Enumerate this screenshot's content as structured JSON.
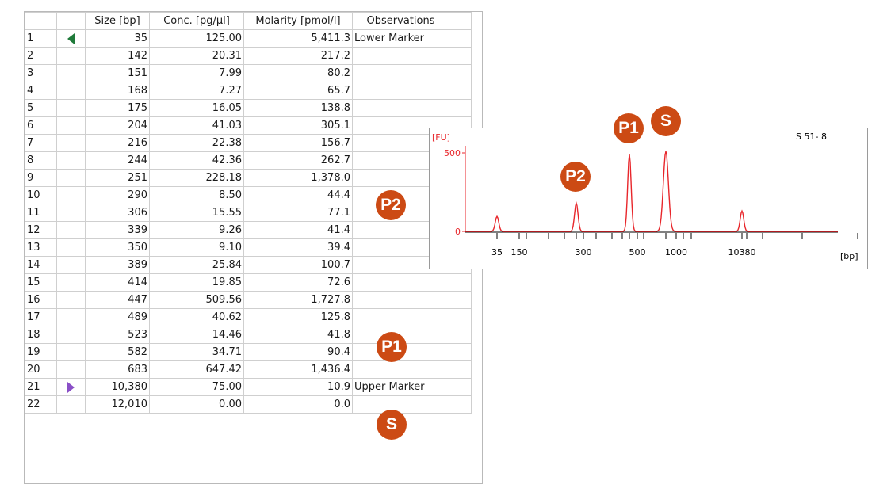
{
  "table": {
    "headers": [
      "",
      "",
      "Size [bp]",
      "Conc. [pg/µl]",
      "Molarity [pmol/l]",
      "Observations",
      ""
    ],
    "rows": [
      {
        "n": "1",
        "size": "35",
        "conc": "125.00",
        "mol": "5,411.3",
        "obs": "Lower Marker",
        "marker": "lower"
      },
      {
        "n": "2",
        "size": "142",
        "conc": "20.31",
        "mol": "217.2",
        "obs": "",
        "marker": ""
      },
      {
        "n": "3",
        "size": "151",
        "conc": "7.99",
        "mol": "80.2",
        "obs": "",
        "marker": ""
      },
      {
        "n": "4",
        "size": "168",
        "conc": "7.27",
        "mol": "65.7",
        "obs": "",
        "marker": ""
      },
      {
        "n": "5",
        "size": "175",
        "conc": "16.05",
        "mol": "138.8",
        "obs": "",
        "marker": ""
      },
      {
        "n": "6",
        "size": "204",
        "conc": "41.03",
        "mol": "305.1",
        "obs": "",
        "marker": ""
      },
      {
        "n": "7",
        "size": "216",
        "conc": "22.38",
        "mol": "156.7",
        "obs": "",
        "marker": ""
      },
      {
        "n": "8",
        "size": "244",
        "conc": "42.36",
        "mol": "262.7",
        "obs": "",
        "marker": ""
      },
      {
        "n": "9",
        "size": "251",
        "conc": "228.18",
        "mol": "1,378.0",
        "obs": "",
        "marker": ""
      },
      {
        "n": "10",
        "size": "290",
        "conc": "8.50",
        "mol": "44.4",
        "obs": "",
        "marker": ""
      },
      {
        "n": "11",
        "size": "306",
        "conc": "15.55",
        "mol": "77.1",
        "obs": "",
        "marker": ""
      },
      {
        "n": "12",
        "size": "339",
        "conc": "9.26",
        "mol": "41.4",
        "obs": "",
        "marker": ""
      },
      {
        "n": "13",
        "size": "350",
        "conc": "9.10",
        "mol": "39.4",
        "obs": "",
        "marker": ""
      },
      {
        "n": "14",
        "size": "389",
        "conc": "25.84",
        "mol": "100.7",
        "obs": "",
        "marker": ""
      },
      {
        "n": "15",
        "size": "414",
        "conc": "19.85",
        "mol": "72.6",
        "obs": "",
        "marker": ""
      },
      {
        "n": "16",
        "size": "447",
        "conc": "509.56",
        "mol": "1,727.8",
        "obs": "",
        "marker": ""
      },
      {
        "n": "17",
        "size": "489",
        "conc": "40.62",
        "mol": "125.8",
        "obs": "",
        "marker": ""
      },
      {
        "n": "18",
        "size": "523",
        "conc": "14.46",
        "mol": "41.8",
        "obs": "",
        "marker": ""
      },
      {
        "n": "19",
        "size": "582",
        "conc": "34.71",
        "mol": "90.4",
        "obs": "",
        "marker": ""
      },
      {
        "n": "20",
        "size": "683",
        "conc": "647.42",
        "mol": "1,436.4",
        "obs": "",
        "marker": ""
      },
      {
        "n": "21",
        "size": "10,380",
        "conc": "75.00",
        "mol": "10.9",
        "obs": "Upper Marker",
        "marker": "upper"
      },
      {
        "n": "22",
        "size": "12,010",
        "conc": "0.00",
        "mol": "0.0",
        "obs": "",
        "marker": ""
      }
    ]
  },
  "badges": {
    "table_p2": "P2",
    "table_p1": "P1",
    "table_s": "S",
    "chart_p1": "P1",
    "chart_s": "S",
    "chart_p2": "P2"
  },
  "colors": {
    "badge": "#cc4a14",
    "trace": "#e8262b",
    "lower_marker": "#1f7a3a",
    "upper_marker": "#8a4fc7"
  },
  "chart_data": {
    "type": "line",
    "sample_label": "S 51- 8",
    "ylabel": "[FU]",
    "xlabel": "[bp]",
    "y_ticks": [
      "0",
      "500"
    ],
    "x_tick_labels": [
      "35",
      "150",
      "300",
      "500",
      "1000",
      "10380"
    ],
    "ylim": [
      0,
      550
    ],
    "peaks": [
      {
        "size_bp": 35,
        "fu": 95
      },
      {
        "size_bp": 251,
        "fu": 180
      },
      {
        "size_bp": 447,
        "fu": 490
      },
      {
        "size_bp": 683,
        "fu": 510
      },
      {
        "size_bp": 10380,
        "fu": 130
      }
    ]
  }
}
